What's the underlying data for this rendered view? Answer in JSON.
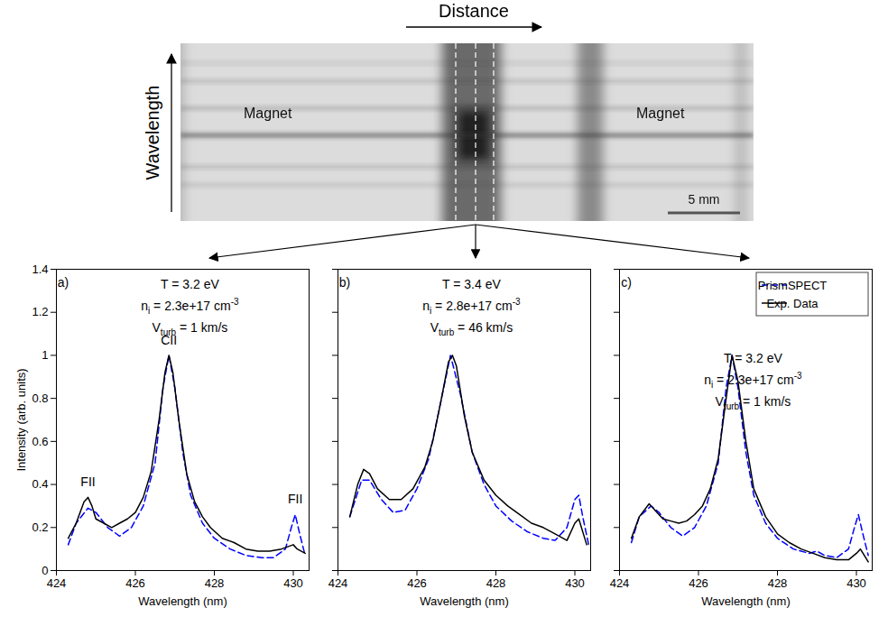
{
  "spectrum_image": {
    "x_label": "Distance",
    "y_label": "Wavelength",
    "labels": [
      "Magnet",
      "Magnet"
    ],
    "scale_bar": "5 mm"
  },
  "chart_data": [
    {
      "type": "line",
      "panel": "a)",
      "x_label": "Wavelength (nm)",
      "y_label": "Intensity (arb. units)",
      "xlim": [
        424,
        430.4
      ],
      "xticks": [
        424,
        426,
        428,
        430
      ],
      "ylim": [
        0,
        1.4
      ],
      "yticks": [
        0,
        0.2,
        0.4,
        0.6,
        0.8,
        1,
        1.2,
        1.4
      ],
      "annotations": [
        [
          {
            "text": "T = 3.2 eV"
          }
        ],
        [
          {
            "text": "n"
          },
          {
            "sub": "i"
          },
          {
            "text": " = 2.3e+17 cm"
          },
          {
            "sup": "-3"
          }
        ],
        [
          {
            "text": "V"
          },
          {
            "sub": "turb"
          },
          {
            "text": " = 1 km/s"
          }
        ]
      ],
      "peak_labels": [
        {
          "text": "FII",
          "x": 424.8,
          "y": 0.41
        },
        {
          "text": "CII",
          "x": 426.85,
          "y": 1.07
        },
        {
          "text": "FII",
          "x": 430.05,
          "y": 0.33
        }
      ],
      "series": [
        {
          "name": "PrismSPECT",
          "color": "#0000ff",
          "line_style": "dashed",
          "x": [
            424.3,
            424.5,
            424.8,
            425.0,
            425.3,
            425.6,
            425.9,
            426.2,
            426.5,
            426.7,
            426.85,
            427.0,
            427.2,
            427.4,
            427.7,
            428.0,
            428.4,
            428.8,
            429.2,
            429.5,
            429.8,
            429.95,
            430.05,
            430.15,
            430.3
          ],
          "values": [
            0.12,
            0.22,
            0.29,
            0.27,
            0.2,
            0.16,
            0.2,
            0.3,
            0.5,
            0.85,
            1.0,
            0.85,
            0.55,
            0.35,
            0.22,
            0.15,
            0.1,
            0.07,
            0.06,
            0.06,
            0.1,
            0.2,
            0.26,
            0.18,
            0.07
          ]
        },
        {
          "name": "Exp. Data",
          "color": "#000000",
          "line_style": "solid",
          "x": [
            424.3,
            424.5,
            424.7,
            424.8,
            424.9,
            425.0,
            425.2,
            425.4,
            425.6,
            425.8,
            426.0,
            426.2,
            426.4,
            426.6,
            426.75,
            426.85,
            426.95,
            427.1,
            427.3,
            427.5,
            427.7,
            427.9,
            428.2,
            428.5,
            428.8,
            429.1,
            429.4,
            429.7,
            430.0,
            430.1,
            430.3
          ],
          "values": [
            0.15,
            0.22,
            0.32,
            0.34,
            0.3,
            0.24,
            0.22,
            0.2,
            0.22,
            0.24,
            0.27,
            0.34,
            0.46,
            0.7,
            0.92,
            1.0,
            0.92,
            0.7,
            0.45,
            0.32,
            0.25,
            0.2,
            0.15,
            0.13,
            0.1,
            0.09,
            0.09,
            0.1,
            0.12,
            0.1,
            0.08
          ]
        }
      ]
    },
    {
      "type": "line",
      "panel": "b)",
      "x_label": "Wavelength (nm)",
      "tick_labels": "x",
      "xlim": [
        424,
        430.4
      ],
      "xticks": [
        424,
        426,
        428,
        430
      ],
      "ylim": [
        0,
        1.4
      ],
      "yticks": [
        0,
        0.2,
        0.4,
        0.6,
        0.8,
        1,
        1.2,
        1.4
      ],
      "annotations": [
        [
          {
            "text": "T = 3.4 eV"
          }
        ],
        [
          {
            "text": "n"
          },
          {
            "sub": "i"
          },
          {
            "text": " = 2.8e+17 cm"
          },
          {
            "sup": "-3"
          }
        ],
        [
          {
            "text": "V"
          },
          {
            "sub": "turb"
          },
          {
            "text": " = 46 km/s"
          }
        ]
      ],
      "series": [
        {
          "name": "PrismSPECT",
          "color": "#0000ff",
          "line_style": "dashed",
          "x": [
            424.3,
            424.6,
            424.8,
            425.1,
            425.4,
            425.7,
            426.0,
            426.3,
            426.6,
            426.85,
            427.1,
            427.4,
            427.7,
            428.0,
            428.4,
            428.8,
            429.2,
            429.5,
            429.8,
            430.0,
            430.1,
            430.2,
            430.35
          ],
          "values": [
            0.25,
            0.42,
            0.42,
            0.33,
            0.27,
            0.28,
            0.38,
            0.52,
            0.78,
            1.0,
            0.82,
            0.55,
            0.4,
            0.3,
            0.23,
            0.18,
            0.15,
            0.14,
            0.2,
            0.33,
            0.35,
            0.25,
            0.12
          ]
        },
        {
          "name": "Exp. Data",
          "color": "#000000",
          "line_style": "solid",
          "x": [
            424.3,
            424.5,
            424.65,
            424.8,
            425.0,
            425.3,
            425.6,
            425.9,
            426.2,
            426.4,
            426.6,
            426.8,
            426.9,
            427.0,
            427.2,
            427.4,
            427.7,
            428.0,
            428.3,
            428.6,
            428.9,
            429.2,
            429.5,
            429.8,
            430.0,
            430.1,
            430.3
          ],
          "values": [
            0.25,
            0.4,
            0.47,
            0.45,
            0.38,
            0.33,
            0.33,
            0.38,
            0.48,
            0.6,
            0.78,
            0.97,
            1.0,
            0.95,
            0.72,
            0.55,
            0.42,
            0.35,
            0.3,
            0.26,
            0.22,
            0.2,
            0.17,
            0.14,
            0.22,
            0.24,
            0.12
          ]
        }
      ]
    },
    {
      "type": "line",
      "panel": "c)",
      "x_label": "Wavelength (nm)",
      "tick_labels": "x",
      "legend": "upper right",
      "xlim": [
        424,
        430.4
      ],
      "xticks": [
        424,
        426,
        428,
        430
      ],
      "ylim": [
        0,
        1.4
      ],
      "yticks": [
        0,
        0.2,
        0.4,
        0.6,
        0.8,
        1,
        1.2,
        1.4
      ],
      "annotations": [
        [
          {
            "text": "T = 3.2 eV"
          }
        ],
        [
          {
            "text": "n"
          },
          {
            "sub": "i"
          },
          {
            "text": " = 2.3e+17 cm"
          },
          {
            "sup": "-3"
          }
        ],
        [
          {
            "text": "V"
          },
          {
            "sub": "turb"
          },
          {
            "text": " = 1 km/s"
          }
        ]
      ],
      "series": [
        {
          "name": "PrismSPECT",
          "color": "#0000ff",
          "line_style": "dashed",
          "x": [
            424.3,
            424.5,
            424.8,
            425.0,
            425.3,
            425.6,
            425.9,
            426.2,
            426.5,
            426.7,
            426.85,
            427.0,
            427.2,
            427.4,
            427.7,
            428.0,
            428.4,
            428.8,
            429.0,
            429.2,
            429.5,
            429.8,
            429.95,
            430.05,
            430.15,
            430.3
          ],
          "values": [
            0.13,
            0.25,
            0.3,
            0.27,
            0.2,
            0.16,
            0.2,
            0.3,
            0.5,
            0.85,
            1.0,
            0.85,
            0.55,
            0.35,
            0.22,
            0.15,
            0.1,
            0.08,
            0.09,
            0.07,
            0.06,
            0.1,
            0.2,
            0.26,
            0.18,
            0.07
          ]
        },
        {
          "name": "Exp. Data",
          "color": "#000000",
          "line_style": "solid",
          "x": [
            424.3,
            424.5,
            424.75,
            424.9,
            425.1,
            425.3,
            425.5,
            425.7,
            425.9,
            426.1,
            426.3,
            426.5,
            426.7,
            426.85,
            427.0,
            427.2,
            427.4,
            427.7,
            428.0,
            428.3,
            428.6,
            428.9,
            429.2,
            429.5,
            429.8,
            430.0,
            430.1,
            430.3
          ],
          "values": [
            0.15,
            0.25,
            0.31,
            0.28,
            0.24,
            0.23,
            0.22,
            0.23,
            0.26,
            0.3,
            0.38,
            0.52,
            0.8,
            1.0,
            0.88,
            0.6,
            0.38,
            0.25,
            0.17,
            0.13,
            0.1,
            0.08,
            0.06,
            0.05,
            0.05,
            0.08,
            0.1,
            0.04
          ]
        }
      ]
    }
  ]
}
